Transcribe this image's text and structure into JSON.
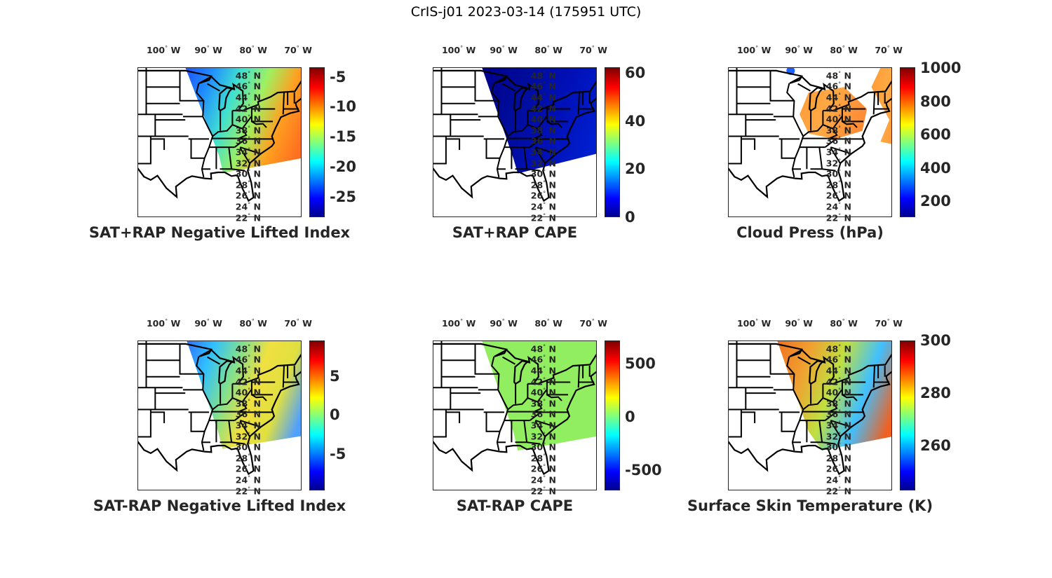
{
  "title": "CrIS-j01 2023-03-14 (175951 UTC)",
  "lon_labels": [
    {
      "value": -100,
      "text": "100",
      "hemi": "W"
    },
    {
      "value": -90,
      "text": "90",
      "hemi": "W"
    },
    {
      "value": -80,
      "text": "80",
      "hemi": "W"
    },
    {
      "value": -70,
      "text": "70",
      "hemi": "W"
    }
  ],
  "lat_labels": [
    {
      "value": 48,
      "text": "48",
      "hemi": "N"
    },
    {
      "value": 46,
      "text": "46",
      "hemi": "N"
    },
    {
      "value": 44,
      "text": "44",
      "hemi": "N"
    },
    {
      "value": 42,
      "text": "42",
      "hemi": "N"
    },
    {
      "value": 40,
      "text": "40",
      "hemi": "N"
    },
    {
      "value": 38,
      "text": "38",
      "hemi": "N"
    },
    {
      "value": 36,
      "text": "36",
      "hemi": "N"
    },
    {
      "value": 34,
      "text": "34",
      "hemi": "N"
    },
    {
      "value": 32,
      "text": "32",
      "hemi": "N"
    },
    {
      "value": 30,
      "text": "30",
      "hemi": "N"
    },
    {
      "value": 28,
      "text": "28",
      "hemi": "N"
    },
    {
      "value": 26,
      "text": "26",
      "hemi": "N"
    },
    {
      "value": 24,
      "text": "24",
      "hemi": "N"
    },
    {
      "value": 22,
      "text": "22",
      "hemi": "N"
    }
  ],
  "degree_symbol": "°",
  "panels": [
    {
      "title": "SAT+RAP Negative Lifted Index",
      "clim": [
        -28.4,
        -3.4
      ],
      "ticks": [
        "-5",
        "-10",
        "-15",
        "-20",
        "-25"
      ],
      "tick_values": [
        -5,
        -10,
        -15,
        -20,
        -25
      ],
      "swath_colors": [
        "#1e50ff",
        "#2090ff",
        "#40e0d0",
        "#a0f060",
        "#ffa020",
        "#ff7020"
      ]
    },
    {
      "title": "SAT+RAP CAPE",
      "clim": [
        0,
        62.3
      ],
      "ticks": [
        "60",
        "40",
        "20",
        "0"
      ],
      "tick_values": [
        60,
        40,
        20,
        0
      ],
      "swath_colors": [
        "#00008b",
        "#000c9a",
        "#0010b8",
        "#0020d0"
      ]
    },
    {
      "title": "Cloud Press (hPa)",
      "clim": [
        105,
        1005
      ],
      "ticks": [
        "1000",
        "800",
        "600",
        "400",
        "200"
      ],
      "tick_values": [
        1000,
        800,
        600,
        400,
        200
      ],
      "swath_colors": [
        "#ff9020",
        "#ffa030",
        "#ff8020"
      ]
    },
    {
      "title": "SAT-RAP Negative Lifted Index",
      "clim": [
        -9.7,
        9.6
      ],
      "ticks": [
        "5",
        "0",
        "-5"
      ],
      "tick_values": [
        5,
        0,
        -5
      ],
      "swath_colors": [
        "#3070ff",
        "#30c0ff",
        "#80e090",
        "#f0e040",
        "#e0e040",
        "#50a0ff"
      ]
    },
    {
      "title": "SAT-RAP CAPE",
      "clim": [
        -690,
        720
      ],
      "ticks": [
        "500",
        "0",
        "-500"
      ],
      "tick_values": [
        500,
        0,
        -500
      ],
      "swath_colors": [
        "#90ee60",
        "#90ee60"
      ]
    },
    {
      "title": "Surface Skin Temperature (K)",
      "clim": [
        243,
        300
      ],
      "ticks": [
        "300",
        "280",
        "260"
      ],
      "tick_values": [
        300,
        280,
        260
      ],
      "swath_colors": [
        "#f07020",
        "#f0a030",
        "#c0e040",
        "#40c0ff",
        "#f06020"
      ]
    }
  ]
}
